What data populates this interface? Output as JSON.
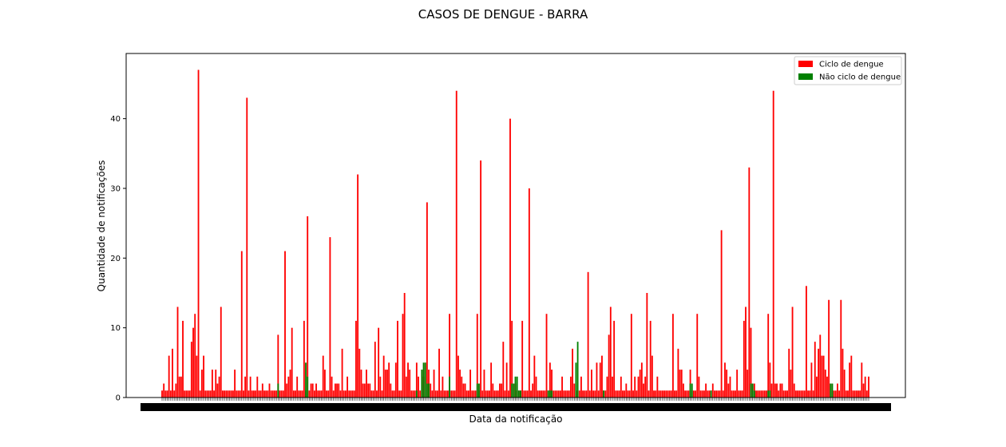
{
  "chart_data": {
    "type": "bar",
    "title": "CASOS DE DENGUE - BARRA",
    "xlabel": "Data da notificação",
    "ylabel": "Quantidade de notificações",
    "ylim": [
      0,
      49.35
    ],
    "yticks": [
      0,
      10,
      20,
      30,
      40
    ],
    "grid": false,
    "legend_position": "top-right",
    "series": [
      {
        "name": "Ciclo de dengue",
        "color": "#ff0000",
        "values": [
          1,
          2,
          1,
          1,
          6,
          1,
          7,
          1,
          2,
          13,
          3,
          3,
          11,
          1,
          1,
          1,
          1,
          8,
          10,
          12,
          6,
          47,
          1,
          4,
          6,
          1,
          1,
          1,
          1,
          4,
          1,
          4,
          2,
          3,
          13,
          1,
          1,
          1,
          1,
          1,
          1,
          1,
          4,
          1,
          1,
          1,
          21,
          1,
          3,
          43,
          1,
          3,
          1,
          1,
          1,
          3,
          1,
          1,
          2,
          1,
          1,
          1,
          2,
          1,
          1,
          1,
          1,
          9,
          1,
          1,
          1,
          21,
          2,
          3,
          4,
          10,
          1,
          1,
          3,
          1,
          1,
          1,
          11,
          1,
          26,
          1,
          2,
          2,
          1,
          2,
          1,
          1,
          1,
          6,
          4,
          1,
          1,
          23,
          3,
          1,
          2,
          2,
          2,
          1,
          7,
          1,
          1,
          3,
          1,
          1,
          1,
          1,
          11,
          32,
          7,
          4,
          2,
          2,
          4,
          2,
          2,
          1,
          1,
          8,
          1,
          10,
          3,
          1,
          6,
          4,
          4,
          5,
          2,
          1,
          1,
          5,
          11,
          1,
          1,
          12,
          15,
          3,
          5,
          4,
          1,
          1,
          1,
          5,
          3,
          1,
          4,
          3,
          5,
          28,
          4,
          2,
          1,
          4,
          1,
          1,
          7,
          1,
          3,
          1,
          1,
          1,
          12,
          1,
          1,
          1,
          44,
          6,
          4,
          3,
          2,
          2,
          1,
          1,
          4,
          1,
          1,
          1,
          12,
          1,
          34,
          1,
          4,
          1,
          1,
          1,
          5,
          2,
          1,
          1,
          1,
          2,
          2,
          8,
          1,
          5,
          1,
          40,
          11,
          2,
          2,
          1,
          1,
          1,
          11,
          1,
          1,
          1,
          30,
          1,
          2,
          6,
          3,
          1,
          1,
          1,
          1,
          1,
          12,
          1,
          5,
          4,
          1,
          1,
          1,
          1,
          1,
          3,
          1,
          1,
          1,
          1,
          3,
          7,
          2,
          1,
          1,
          1,
          3,
          1,
          1,
          1,
          18,
          1,
          4,
          1,
          1,
          5,
          1,
          5,
          6,
          1,
          1,
          3,
          9,
          13,
          3,
          11,
          1,
          1,
          1,
          3,
          1,
          1,
          2,
          1,
          1,
          12,
          1,
          3,
          1,
          3,
          4,
          5,
          2,
          3,
          15,
          1,
          11,
          6,
          1,
          1,
          3,
          1,
          1,
          1,
          1,
          1,
          1,
          1,
          1,
          12,
          1,
          1,
          7,
          4,
          4,
          2,
          1,
          1,
          1,
          4,
          1,
          1,
          1,
          12,
          3,
          1,
          1,
          1,
          2,
          1,
          1,
          1,
          2,
          1,
          1,
          1,
          1,
          24,
          1,
          5,
          4,
          2,
          3,
          1,
          1,
          1,
          4,
          1,
          1,
          1,
          11,
          13,
          4,
          33,
          10,
          2,
          2,
          1,
          1,
          1,
          1,
          1,
          1,
          1,
          12,
          5,
          2,
          44,
          2,
          2,
          1,
          2,
          2,
          1,
          1,
          1,
          7,
          4,
          13,
          2,
          1,
          1,
          1,
          1,
          1,
          1,
          16,
          1,
          1,
          5,
          1,
          8,
          3,
          7,
          9,
          6,
          6,
          4,
          3,
          14,
          2,
          1,
          1,
          1,
          2,
          1,
          14,
          7,
          4,
          1,
          1,
          5,
          6,
          1,
          1,
          1,
          1,
          1,
          5,
          2,
          3,
          1,
          3
        ]
      },
      {
        "name": "Não ciclo de dengue",
        "color": "#008000",
        "values": [
          0,
          0,
          0,
          0,
          0,
          0,
          0,
          0,
          0,
          0,
          0,
          0,
          0,
          0,
          0,
          0,
          0,
          0,
          0,
          0,
          0,
          0,
          0,
          0,
          0,
          0,
          0,
          0,
          0,
          0,
          0,
          0,
          0,
          0,
          0,
          0,
          0,
          0,
          0,
          0,
          0,
          0,
          0,
          0,
          0,
          0,
          0,
          0,
          0,
          0,
          0,
          0,
          0,
          0,
          0,
          0,
          0,
          0,
          0,
          0,
          0,
          0,
          0,
          0,
          0,
          0,
          0,
          2,
          0,
          0,
          0,
          0,
          0,
          0,
          0,
          0,
          0,
          0,
          0,
          0,
          0,
          0,
          0,
          5,
          3,
          0,
          0,
          0,
          0,
          0,
          0,
          0,
          0,
          0,
          0,
          0,
          0,
          0,
          0,
          0,
          0,
          0,
          0,
          0,
          0,
          0,
          0,
          0,
          0,
          0,
          0,
          0,
          0,
          0,
          0,
          0,
          0,
          0,
          0,
          0,
          0,
          0,
          0,
          0,
          0,
          0,
          0,
          0,
          0,
          0,
          0,
          0,
          0,
          0,
          0,
          0,
          0,
          0,
          0,
          0,
          0,
          0,
          0,
          0,
          0,
          0,
          0,
          1,
          0,
          0,
          4,
          5,
          5,
          2,
          2,
          0,
          0,
          0,
          0,
          0,
          0,
          0,
          0,
          0,
          0,
          0,
          3,
          0,
          0,
          0,
          0,
          0,
          0,
          0,
          0,
          0,
          0,
          0,
          0,
          0,
          0,
          0,
          2,
          2,
          0,
          0,
          0,
          0,
          0,
          0,
          0,
          0,
          0,
          0,
          0,
          0,
          0,
          0,
          0,
          0,
          0,
          0,
          2,
          2,
          3,
          3,
          1,
          1,
          0,
          0,
          0,
          0,
          0,
          0,
          0,
          0,
          0,
          0,
          0,
          0,
          0,
          0,
          0,
          1,
          1,
          1,
          0,
          0,
          0,
          0,
          0,
          0,
          0,
          0,
          0,
          0,
          0,
          0,
          0,
          5,
          8,
          0,
          0,
          0,
          0,
          0,
          0,
          0,
          0,
          0,
          0,
          0,
          0,
          0,
          0,
          1,
          0,
          0,
          0,
          0,
          0,
          0,
          0,
          0,
          0,
          0,
          0,
          0,
          0,
          0,
          0,
          0,
          0,
          0,
          0,
          0,
          0,
          0,
          0,
          0,
          0,
          0,
          0,
          0,
          0,
          0,
          0,
          0,
          0,
          0,
          0,
          0,
          0,
          0,
          0,
          0,
          0,
          0,
          0,
          0,
          0,
          0,
          0,
          0,
          0,
          2,
          2,
          0,
          0,
          0,
          0,
          0,
          0,
          0,
          0,
          0,
          0,
          1,
          0,
          0,
          0,
          0,
          0,
          0,
          0,
          0,
          0,
          0,
          0,
          0,
          0,
          0,
          0,
          0,
          0,
          0,
          0,
          0,
          0,
          0,
          2,
          2,
          1,
          0,
          0,
          0,
          0,
          0,
          0,
          0,
          1,
          1,
          0,
          0,
          0,
          0,
          0,
          0,
          0,
          0,
          0,
          0,
          0,
          0,
          0,
          0,
          0,
          0,
          0,
          0,
          0,
          0,
          0,
          0,
          0,
          0,
          0,
          0,
          0,
          0,
          0,
          0,
          0,
          0,
          0,
          0,
          2,
          2,
          0,
          0,
          0,
          0,
          0,
          0,
          0,
          0,
          0,
          0,
          0,
          0,
          0,
          0,
          0,
          0,
          0,
          0,
          0,
          0,
          0,
          0,
          0,
          0,
          0,
          0,
          0,
          0,
          0,
          0,
          0,
          0,
          0,
          0,
          0,
          0,
          0,
          0,
          0,
          0,
          0,
          0,
          0,
          0,
          0,
          0,
          0,
          0,
          0,
          0,
          0,
          0,
          0,
          0,
          0,
          0
        ]
      }
    ]
  }
}
